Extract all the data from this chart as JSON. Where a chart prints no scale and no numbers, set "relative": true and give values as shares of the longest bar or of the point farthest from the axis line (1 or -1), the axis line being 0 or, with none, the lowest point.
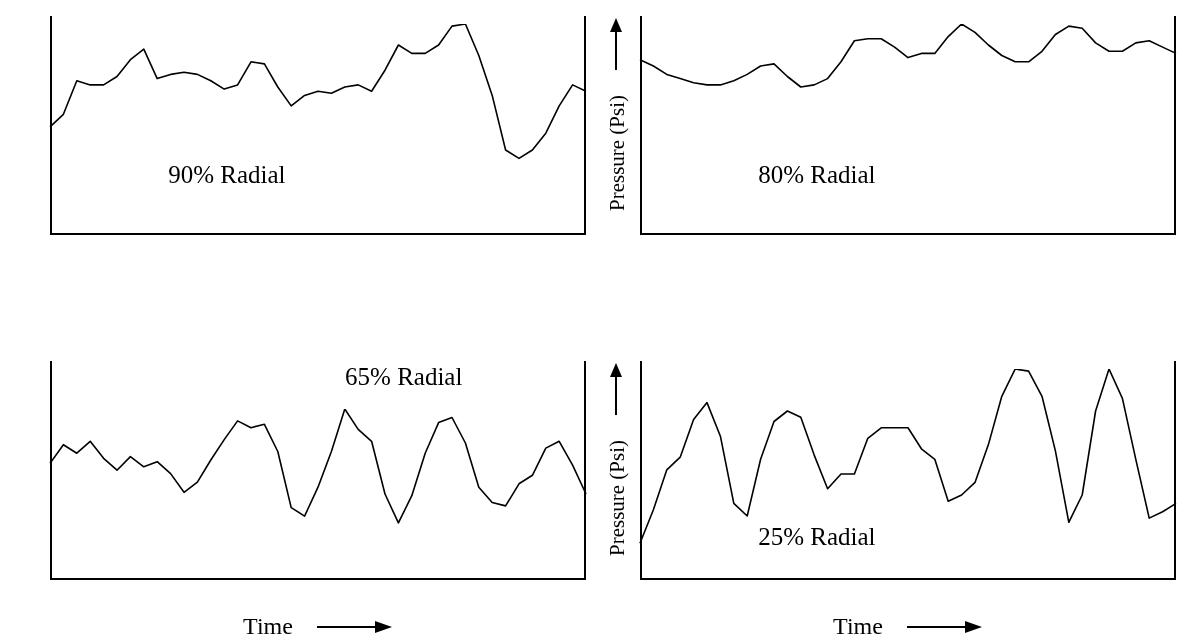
{
  "chart_data": [
    {
      "type": "line",
      "relative": true,
      "color": "#000000",
      "annotations": [
        "90% Radial"
      ],
      "categories": [
        null,
        null,
        null,
        null,
        null,
        null,
        null,
        null,
        null,
        null,
        null,
        null,
        null,
        null,
        null,
        null,
        null,
        null,
        null,
        null,
        null,
        null,
        null,
        null,
        null,
        null,
        null,
        null,
        null,
        null,
        null,
        null,
        null,
        null,
        null,
        null,
        null,
        null,
        null,
        null,
        null
      ],
      "values": [
        0.51,
        0.57,
        0.73,
        0.71,
        0.71,
        0.75,
        0.83,
        0.88,
        0.74,
        0.76,
        0.77,
        0.76,
        0.73,
        0.69,
        0.71,
        0.82,
        0.81,
        0.7,
        0.61,
        0.66,
        0.68,
        0.67,
        0.7,
        0.71,
        0.68,
        0.78,
        0.9,
        0.86,
        0.86,
        0.9,
        0.99,
        1.0,
        0.85,
        0.66,
        0.4,
        0.36,
        0.4,
        0.48,
        0.61,
        0.71,
        0.68
      ]
    },
    {
      "type": "line",
      "relative": true,
      "color": "#000000",
      "annotations": [
        "80% Radial"
      ],
      "ylabel": "Pressure (Psi)",
      "categories": [
        null,
        null,
        null,
        null,
        null,
        null,
        null,
        null,
        null,
        null,
        null,
        null,
        null,
        null,
        null,
        null,
        null,
        null,
        null,
        null,
        null,
        null,
        null,
        null,
        null,
        null,
        null,
        null,
        null,
        null,
        null,
        null,
        null,
        null,
        null,
        null,
        null,
        null,
        null,
        null,
        null
      ],
      "values": [
        0.83,
        0.8,
        0.76,
        0.74,
        0.72,
        0.71,
        0.71,
        0.73,
        0.76,
        0.8,
        0.81,
        0.75,
        0.7,
        0.71,
        0.74,
        0.82,
        0.92,
        0.93,
        0.93,
        0.89,
        0.84,
        0.86,
        0.86,
        0.94,
        1.0,
        0.96,
        0.9,
        0.85,
        0.82,
        0.82,
        0.87,
        0.95,
        0.99,
        0.98,
        0.91,
        0.87,
        0.87,
        0.91,
        0.92,
        0.89,
        0.86
      ]
    },
    {
      "type": "line",
      "relative": true,
      "color": "#000000",
      "annotations": [
        "65% Radial"
      ],
      "xlabel": "Time",
      "categories": [
        null,
        null,
        null,
        null,
        null,
        null,
        null,
        null,
        null,
        null,
        null,
        null,
        null,
        null,
        null,
        null,
        null,
        null,
        null,
        null,
        null,
        null,
        null,
        null,
        null,
        null,
        null,
        null,
        null,
        null,
        null,
        null,
        null,
        null,
        null,
        null,
        null,
        null,
        null,
        null,
        null
      ],
      "values": [
        0.68,
        0.79,
        0.74,
        0.81,
        0.71,
        0.64,
        0.72,
        0.66,
        0.69,
        0.62,
        0.51,
        0.57,
        0.7,
        0.82,
        0.93,
        0.89,
        0.91,
        0.75,
        0.42,
        0.37,
        0.54,
        0.75,
        1.0,
        0.88,
        0.81,
        0.5,
        0.33,
        0.49,
        0.74,
        0.92,
        0.95,
        0.8,
        0.54,
        0.45,
        0.43,
        0.56,
        0.61,
        0.77,
        0.81,
        0.67,
        0.5
      ]
    },
    {
      "type": "line",
      "relative": true,
      "color": "#000000",
      "annotations": [
        "25% Radial"
      ],
      "xlabel": "Time",
      "ylabel": "Pressure (Psi)",
      "categories": [
        null,
        null,
        null,
        null,
        null,
        null,
        null,
        null,
        null,
        null,
        null,
        null,
        null,
        null,
        null,
        null,
        null,
        null,
        null,
        null,
        null,
        null,
        null,
        null,
        null,
        null,
        null,
        null,
        null,
        null,
        null,
        null,
        null,
        null,
        null,
        null,
        null,
        null,
        null,
        null,
        null
      ],
      "values": [
        0.17,
        0.33,
        0.52,
        0.58,
        0.76,
        0.84,
        0.68,
        0.36,
        0.3,
        0.57,
        0.75,
        0.8,
        0.77,
        0.59,
        0.43,
        0.5,
        0.5,
        0.67,
        0.72,
        0.72,
        0.72,
        0.62,
        0.57,
        0.37,
        0.4,
        0.46,
        0.64,
        0.87,
        1.0,
        0.99,
        0.87,
        0.61,
        0.27,
        0.4,
        0.8,
        1.0,
        0.86,
        0.57,
        0.29,
        0.32,
        0.36
      ]
    }
  ]
}
